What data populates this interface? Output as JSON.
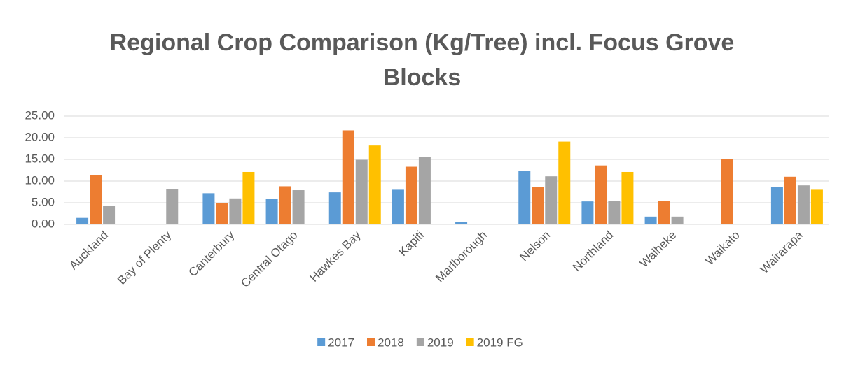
{
  "chart_data": {
    "type": "bar",
    "title": "Regional Crop Comparison (Kg/Tree) incl. Focus Grove Blocks",
    "categories": [
      "Auckland",
      "Bay of Plenty",
      "Canterbury",
      "Central Otago",
      "Hawkes Bay",
      "Kapiti",
      "Marlborough",
      "Nelson",
      "Northland",
      "Waiheke",
      "Waikato",
      "Wairarapa"
    ],
    "series": [
      {
        "name": "2017",
        "color": "#5b9bd5",
        "values": [
          1.5,
          null,
          7.2,
          5.9,
          7.4,
          8.0,
          0.6,
          12.4,
          5.3,
          1.8,
          null,
          8.7
        ]
      },
      {
        "name": "2018",
        "color": "#ed7d31",
        "values": [
          11.3,
          null,
          5.0,
          8.8,
          21.7,
          13.3,
          null,
          8.6,
          13.6,
          5.4,
          15.0,
          11.0
        ]
      },
      {
        "name": "2019",
        "color": "#a5a5a5",
        "values": [
          4.2,
          8.2,
          6.0,
          7.9,
          14.9,
          15.5,
          null,
          11.1,
          5.4,
          1.8,
          null,
          9.0
        ]
      },
      {
        "name": "2019 FG",
        "color": "#ffc000",
        "values": [
          null,
          null,
          12.1,
          null,
          18.2,
          null,
          null,
          19.1,
          12.1,
          null,
          null,
          8.0
        ]
      }
    ],
    "ylim": [
      0,
      25
    ],
    "yticks": [
      {
        "value": 0,
        "label": "0.00"
      },
      {
        "value": 5,
        "label": "5.00"
      },
      {
        "value": 10,
        "label": "10.00"
      },
      {
        "value": 15,
        "label": "15.00"
      },
      {
        "value": 20,
        "label": "20.00"
      },
      {
        "value": 25,
        "label": "25.00"
      }
    ],
    "grid": true,
    "legend": "bottom"
  }
}
